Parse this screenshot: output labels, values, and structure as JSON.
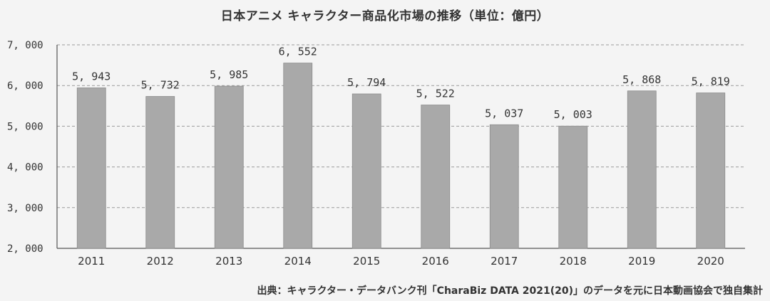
{
  "chart_data": {
    "type": "bar",
    "title": "日本アニメ キャラクター商品化市場の推移（単位：億円）",
    "categories": [
      "2011",
      "2012",
      "2013",
      "2014",
      "2015",
      "2016",
      "2017",
      "2018",
      "2019",
      "2020"
    ],
    "values": [
      5943,
      5732,
      5985,
      6552,
      5794,
      5522,
      5037,
      5003,
      5868,
      5819
    ],
    "data_labels": [
      "5, 943",
      "5, 732",
      "5, 985",
      "6, 552",
      "5, 794",
      "5, 522",
      "5, 037",
      "5, 003",
      "5, 868",
      "5, 819"
    ],
    "y_ticks": [
      2000,
      3000,
      4000,
      5000,
      6000,
      7000
    ],
    "y_tick_labels": [
      "2, 000",
      "3, 000",
      "4, 000",
      "5, 000",
      "6, 000",
      "7, 000"
    ],
    "ylim": [
      2000,
      7000
    ],
    "grid": true,
    "bar_color": "#a9a9a9",
    "xlabel": "",
    "ylabel": ""
  },
  "source_note": "出典：キャラクター・データバンク刊「CharaBiz DATA 2021(20)」のデータを元に日本動画協会で独自集計"
}
